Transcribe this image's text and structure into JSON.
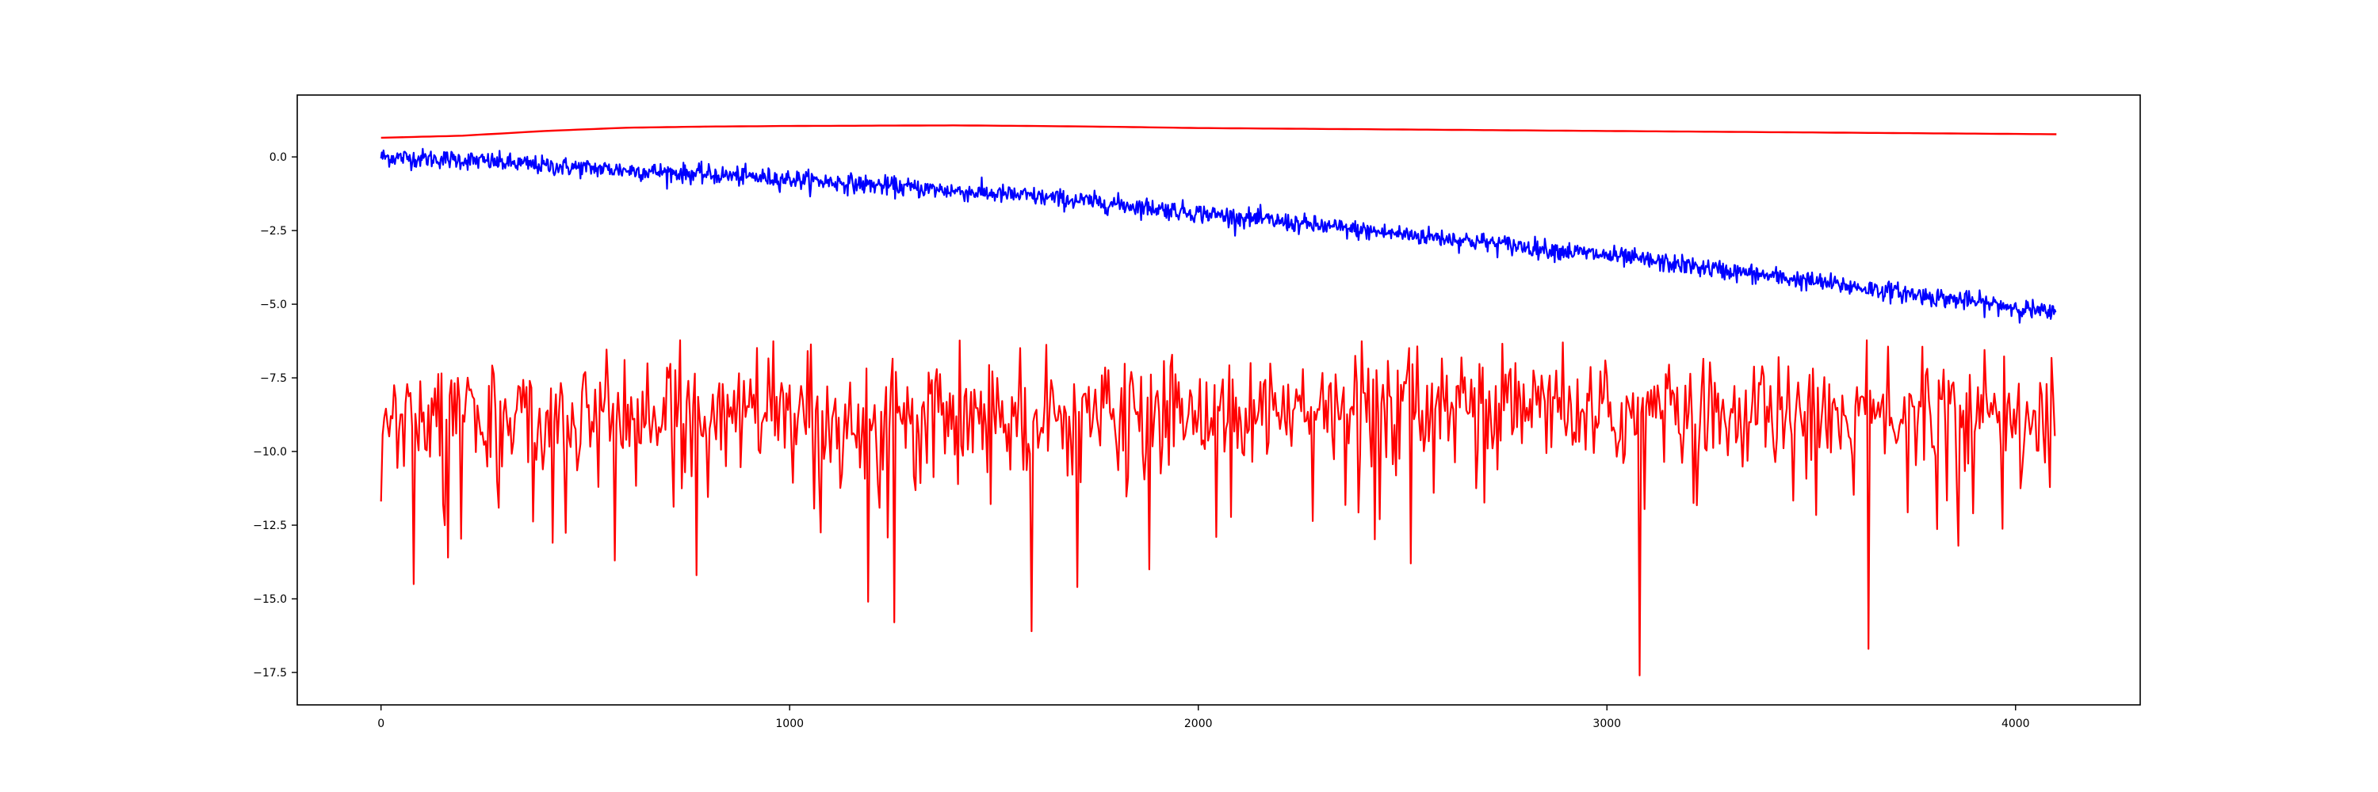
{
  "chart_data": {
    "type": "line",
    "title": "",
    "xlabel": "",
    "ylabel": "",
    "xlim": [
      -205,
      4305
    ],
    "ylim": [
      -18.6,
      2.1
    ],
    "grid": false,
    "legend": "none",
    "x_ticks": [
      0,
      1000,
      2000,
      3000,
      4000
    ],
    "x_tick_labels": [
      "0",
      "1000",
      "2000",
      "3000",
      "4000"
    ],
    "y_ticks": [
      0.0,
      -2.5,
      -5.0,
      -7.5,
      -10.0,
      -12.5,
      -15.0,
      -17.5
    ],
    "y_tick_labels": [
      "0.0",
      "−2.5",
      "−5.0",
      "−7.5",
      "−10.0",
      "−12.5",
      "−15.0",
      "−17.5"
    ],
    "n_points": 4100,
    "series": [
      {
        "color": "#ff0000",
        "style": "smooth",
        "x": [
          0,
          200,
          400,
          600,
          800,
          1000,
          1200,
          1400,
          1600,
          1800,
          2000,
          2200,
          2400,
          2600,
          2800,
          3000,
          3200,
          3400,
          3600,
          3800,
          4000,
          4100
        ],
        "values": [
          0.65,
          0.72,
          0.88,
          0.99,
          1.03,
          1.05,
          1.06,
          1.07,
          1.05,
          1.02,
          0.98,
          0.96,
          0.94,
          0.92,
          0.9,
          0.88,
          0.86,
          0.84,
          0.82,
          0.8,
          0.78,
          0.77
        ]
      },
      {
        "color": "#0000ff",
        "style": "noisy",
        "noise": 0.16,
        "x": [
          0,
          200,
          400,
          600,
          800,
          1000,
          1200,
          1400,
          1600,
          1800,
          2000,
          2200,
          2400,
          2600,
          2800,
          3000,
          3200,
          3400,
          3600,
          3800,
          4000,
          4100
        ],
        "values": [
          0.0,
          -0.1,
          -0.3,
          -0.45,
          -0.6,
          -0.75,
          -0.95,
          -1.15,
          -1.35,
          -1.6,
          -1.9,
          -2.2,
          -2.5,
          -2.75,
          -3.05,
          -3.35,
          -3.7,
          -4.05,
          -4.4,
          -4.75,
          -5.1,
          -5.35
        ]
      },
      {
        "color": "#ff0000",
        "style": "spiky",
        "center": -8.7,
        "spread": 0.9,
        "spikes": [
          [
            80,
            -14.5
          ],
          [
            165,
            -13.6
          ],
          [
            420,
            -13.1
          ],
          [
            570,
            -13.7
          ],
          [
            770,
            -14.2
          ],
          [
            1190,
            -15.1
          ],
          [
            1255,
            -15.8
          ],
          [
            1590,
            -16.1
          ],
          [
            1705,
            -14.6
          ],
          [
            1880,
            -14.0
          ],
          [
            2520,
            -13.8
          ],
          [
            3080,
            -17.6
          ],
          [
            3640,
            -16.7
          ],
          [
            3860,
            -13.2
          ]
        ],
        "x": [
          0,
          4100
        ],
        "values": [
          -8.7,
          -8.7
        ]
      }
    ]
  }
}
